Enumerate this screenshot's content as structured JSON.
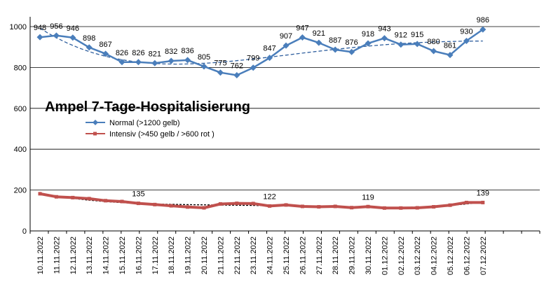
{
  "chart_data": {
    "type": "line",
    "title": "Ampel 7-Tage-Hospitalisierung",
    "xlabel": "",
    "ylabel": "",
    "ylim": [
      0,
      1000
    ],
    "yticks": [
      "0",
      "200",
      "400",
      "600",
      "800",
      "1000"
    ],
    "grid": true,
    "legend_position": "center-left",
    "categories": [
      "10.11.2022",
      "11.11.2022",
      "12.11.2022",
      "13.11.2022",
      "14.11.2022",
      "15.11.2022",
      "16.11.2022",
      "17.11.2022",
      "18.11.2022",
      "19.11.2022",
      "20.11.2022",
      "21.11.2022",
      "22.11.2022",
      "23.11.2022",
      "24.11.2022",
      "25.11.2022",
      "26.11.2022",
      "27.11.2022",
      "28.11.2022",
      "29.11.2022",
      "30.11.2022",
      "01.12.2022",
      "02.12.2022",
      "03.12.2022",
      "04.12.2022",
      "05.12.2022",
      "06.12.2022",
      "07.12.2022"
    ],
    "series": [
      {
        "name": "Normal (>1200 gelb)",
        "color": "#4a7ebb",
        "values": [
          948,
          956,
          946,
          898,
          867,
          826,
          826,
          821,
          832,
          836,
          805,
          775,
          762,
          799,
          847,
          907,
          947,
          921,
          887,
          876,
          918,
          943,
          912,
          915,
          880,
          861,
          930,
          986
        ],
        "labels": [
          "948",
          "956",
          "946",
          "898",
          "867",
          "826",
          "826",
          "821",
          "832",
          "836",
          "805",
          "775",
          "762",
          "799",
          "847",
          "907",
          "947",
          "921",
          "887",
          "876",
          "918",
          "943",
          "912",
          "915",
          "880",
          "861",
          "930",
          "986"
        ]
      },
      {
        "name": "Intensiv (>450 gelb / >600 rot )",
        "color": "#c0504d",
        "values": [
          182,
          167,
          163,
          158,
          148,
          144,
          135,
          129,
          123,
          117,
          113,
          132,
          135,
          134,
          122,
          127,
          120,
          118,
          120,
          114,
          119,
          112,
          112,
          113,
          118,
          126,
          139,
          139
        ],
        "labels": [
          "",
          "",
          "",
          "",
          "",
          "",
          "135",
          "",
          "",
          "",
          "",
          "",
          "",
          "",
          "122",
          "",
          "",
          "",
          "",
          "",
          "119",
          "",
          "",
          "",
          "",
          "",
          "",
          "139"
        ]
      }
    ]
  }
}
